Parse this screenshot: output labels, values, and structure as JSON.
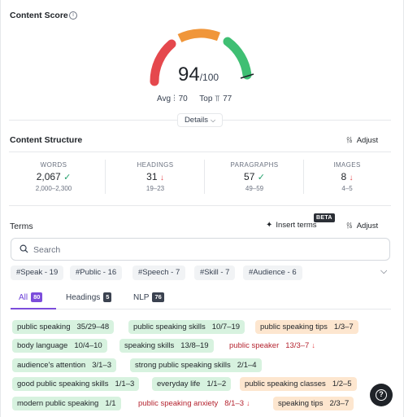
{
  "content_score": {
    "title": "Content Score",
    "score": "94",
    "max": "/100",
    "avg_label": "Avg",
    "avg_value": "70",
    "top_label": "Top",
    "top_value": "77",
    "details_label": "Details",
    "gauge_level": 0.94,
    "colors": {
      "low": "#e5484d",
      "mid": "#f0963a",
      "high": "#3fbf73"
    }
  },
  "content_structure": {
    "title": "Content Structure",
    "adjust_label": "Adjust",
    "stats": [
      {
        "label": "WORDS",
        "value": "2,067",
        "status": "ok",
        "range": "2,000–2,300"
      },
      {
        "label": "HEADINGS",
        "value": "31",
        "status": "down",
        "range": "19–23"
      },
      {
        "label": "PARAGRAPHS",
        "value": "57",
        "status": "ok",
        "range": "49–59"
      },
      {
        "label": "IMAGES",
        "value": "8",
        "status": "down",
        "range": "4–5"
      }
    ]
  },
  "terms": {
    "title": "Terms",
    "insert_label": "Insert terms",
    "beta_label": "BETA",
    "adjust_label": "Adjust",
    "search_placeholder": "Search",
    "filters": [
      "#Speak - 19",
      "#Public - 16",
      "#Speech - 7",
      "#Skill - 7",
      "#Audience - 6"
    ],
    "tabs": [
      {
        "label": "All",
        "count": "80"
      },
      {
        "label": "Headings",
        "count": "5"
      },
      {
        "label": "NLP",
        "count": "76"
      }
    ],
    "items": [
      {
        "name": "public speaking",
        "count": "35/29–48",
        "status": "green"
      },
      {
        "name": "public speaking skills",
        "count": "10/7–19",
        "status": "green"
      },
      {
        "name": "public speaking tips",
        "count": "1/3–7",
        "status": "orange"
      },
      {
        "name": "body language",
        "count": "10/4–10",
        "status": "green"
      },
      {
        "name": "speaking skills",
        "count": "13/8–19",
        "status": "green"
      },
      {
        "name": "public speaker",
        "count": "13/3–7",
        "status": "red"
      },
      {
        "name": "audience's attention",
        "count": "3/1–3",
        "status": "green"
      },
      {
        "name": "strong public speaking skills",
        "count": "2/1–4",
        "status": "green"
      },
      {
        "name": "good public speaking skills",
        "count": "1/1–3",
        "status": "green"
      },
      {
        "name": "everyday life",
        "count": "1/1–2",
        "status": "green"
      },
      {
        "name": "public speaking classes",
        "count": "1/2–5",
        "status": "orange"
      },
      {
        "name": "modern public speaking",
        "count": "1/1",
        "status": "green"
      },
      {
        "name": "public speaking anxiety",
        "count": "8/1–3",
        "status": "red"
      },
      {
        "name": "speaking tips",
        "count": "2/3–7",
        "status": "orange"
      }
    ]
  },
  "icons": {
    "info": "info-icon",
    "chevron": "chevron-down-icon",
    "sliders": "sliders-icon",
    "sparkle": "sparkle-icon",
    "search": "search-icon",
    "help": "help-icon",
    "check": "check-icon",
    "arrow_down": "arrow-down-icon"
  }
}
